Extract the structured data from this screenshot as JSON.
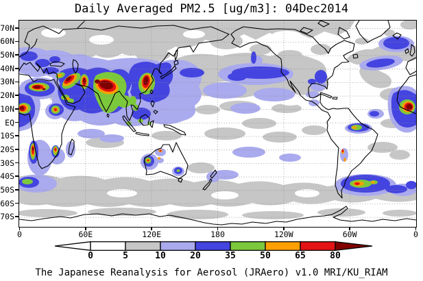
{
  "title": "Daily Averaged PM2.5 [ug/m3]: 04Dec2014",
  "caption": "The Japanese Reanalysis for Aerosol (JRAero) v1.0 MRI/KU_RIAM",
  "axes": {
    "lat_labels": [
      "70N",
      "60N",
      "50N",
      "40N",
      "30N",
      "20N",
      "10N",
      "EQ",
      "10S",
      "20S",
      "30S",
      "40S",
      "50S",
      "60S",
      "70S"
    ],
    "lon_labels": [
      "0",
      "60E",
      "120E",
      "180",
      "120W",
      "60W",
      "0"
    ]
  },
  "colorbar": {
    "labels": [
      "0",
      "5",
      "10",
      "20",
      "35",
      "50",
      "65",
      "80"
    ],
    "segment_colors": [
      "#ffffff",
      "#c6c6c6",
      "#aaaaee",
      "#4444e0",
      "#7cc83c",
      "#ffa000",
      "#e41414"
    ],
    "underflow_color": "#ffffff",
    "overflow_color": "#800000",
    "outline_color": "#000000"
  },
  "chart_data": {
    "type": "heatmap",
    "variable": "Daily Averaged PM2.5",
    "units": "ug/m3",
    "date": "04Dec2014",
    "title": "Daily Averaged PM2.5 [ug/m3]: 04Dec2014",
    "source_label": "The Japanese Reanalysis for Aerosol (JRAero) v1.0 MRI/KU_RIAM",
    "projection": "global lat-lon, Pacific-centered, longitude 0E eastward to 360E",
    "lon_tick_labels": [
      "0",
      "60E",
      "120E",
      "180",
      "120W",
      "60W",
      "0"
    ],
    "lat_tick_labels": [
      "70N",
      "60N",
      "50N",
      "40N",
      "30N",
      "20N",
      "10N",
      "EQ",
      "10S",
      "20S",
      "30S",
      "40S",
      "50S",
      "60S",
      "70S"
    ],
    "lat_range_shown_deg": [
      -77,
      76
    ],
    "grid": "dotted graticule: every 10 deg latitude, every 60 deg longitude",
    "contour_levels": [
      0,
      5,
      10,
      20,
      35,
      50,
      65,
      80
    ],
    "palette_bins": [
      {
        "range": "0-5",
        "color": "#ffffff"
      },
      {
        "range": "5-10",
        "color": "#c6c6c6"
      },
      {
        "range": "10-20",
        "color": "#aaaaee"
      },
      {
        "range": "20-35",
        "color": "#4444e0"
      },
      {
        "range": "35-50",
        "color": "#7cc83c"
      },
      {
        "range": "50-65",
        "color": "#ffa000"
      },
      {
        "range": "65-80",
        "color": "#e41414"
      },
      {
        "range": ">80 (overflow arrow)",
        "color": "#800000"
      }
    ],
    "features": [
      {
        "region": "Sahel / Guinea coast plume (wraps map seam)",
        "lon_deg": "-15 to 12",
        "lat_deg": "5 to 18",
        "pm25": ">80 core, 20-65 halo over tropical Atlantic"
      },
      {
        "region": "Libya / central Sahara dust",
        "lon_deg": "8 to 28",
        "lat_deg": "22 to 31",
        "pm25": ">80 core"
      },
      {
        "region": "Turkey / Syria / Iraq (Mesopotamia) streak",
        "lon_deg": "33 to 48",
        "lat_deg": "28 to 39",
        "pm25": "65->80"
      },
      {
        "region": "Sistan basin (Iran/Afghanistan) vertical streak",
        "lon_deg": "58 to 64",
        "lat_deg": "26 to 35",
        "pm25": ">80"
      },
      {
        "region": "Saudi Arabia spots",
        "lon_deg": "38 to 50",
        "lat_deg": "13 to 23",
        "pm25": "35-55"
      },
      {
        "region": "Ethiopia / Sudan",
        "lon_deg": "29 to 38",
        "lat_deg": "5 to 15",
        "pm25": "50-80"
      },
      {
        "region": "Indo-Gangetic Plain / North India (largest core)",
        "lon_deg": "69 to 90",
        "lat_deg": "20 to 32",
        "pm25": ">80"
      },
      {
        "region": "Bay of Bengal / Indochina",
        "lon_deg": "88 to 108",
        "lat_deg": "8 to 22",
        "pm25": "35-50"
      },
      {
        "region": "Southeast China",
        "lon_deg": "106 to 122",
        "lat_deg": "22 to 40",
        "pm25": "65->80 core"
      },
      {
        "region": "Korea / Japan Sea spot",
        "lon_deg": "127 to 137",
        "lat_deg": "38 to 45",
        "pm25": "20-35"
      },
      {
        "region": "North Pacific downwind plume",
        "lon_deg": "165W to 115W",
        "lat_deg": "33 to 43",
        "pm25": "20-35"
      },
      {
        "region": "North Atlantic south of Iceland",
        "lon_deg": "28W to 7W",
        "lat_deg": "54 to 64",
        "pm25": "20-35"
      },
      {
        "region": "Mid-Atlantic streak",
        "lon_deg": "44W to 20W",
        "lat_deg": "41 to 48",
        "pm25": "20-35"
      },
      {
        "region": "US East Coast / Gulf of Mexico spots",
        "lon_deg": "90W to 75W",
        "lat_deg": "28 to 40",
        "pm25": "20-35"
      },
      {
        "region": "Venezuela / Guyana",
        "lon_deg": "65W to 48W",
        "lat_deg": "0 to 10",
        "pm25": "35-60"
      },
      {
        "region": "Chile / Argentina spots",
        "lon_deg": "71W to 64W",
        "lat_deg": "-33 to -20",
        "pm25": "50-65"
      },
      {
        "region": "South Atlantic east of Patagonia",
        "lon_deg": "62W to 20W",
        "lat_deg": "-52 to -39",
        "pm25": "35-70 core, 20-35 halo"
      },
      {
        "region": "Namibia / Angola coastal streak",
        "lon_deg": "10 to 16",
        "lat_deg": "-29 to -14",
        "pm25": "65->80 spots"
      },
      {
        "region": "Zimbabwe / Mozambique interior spot",
        "lon_deg": "28 to 36",
        "lat_deg": "-26 to -14",
        "pm25": "50-70"
      },
      {
        "region": "Southern Ocean blob south of Africa",
        "lon_deg": "0 to 14",
        "lat_deg": "-48 to -40",
        "pm25": "35-50 core"
      },
      {
        "region": "Southwest Australia",
        "lon_deg": "113 to 122",
        "lat_deg": "-33 to -24",
        "pm25": "50-70 spot"
      },
      {
        "region": "Central Australia spots",
        "lon_deg": "126 to 132",
        "lat_deg": "-29 to -18",
        "pm25": "50-65"
      }
    ],
    "background_pattern": [
      "baseline 0-5 ug/m3 white over most oceans and clean land",
      "5-10 ug/m3 gray over high-latitude Eurasia, Bering/North Pacific, North Atlantic, Southern Ocean 40-60S, scattered tropics",
      "10-20 ug/m3 lavender halos surrounding all source plumes, Europe, central Pacific and Southern Ocean patches"
    ],
    "legend_position": "horizontal colorbar below map with open-ended triangular arrows"
  }
}
